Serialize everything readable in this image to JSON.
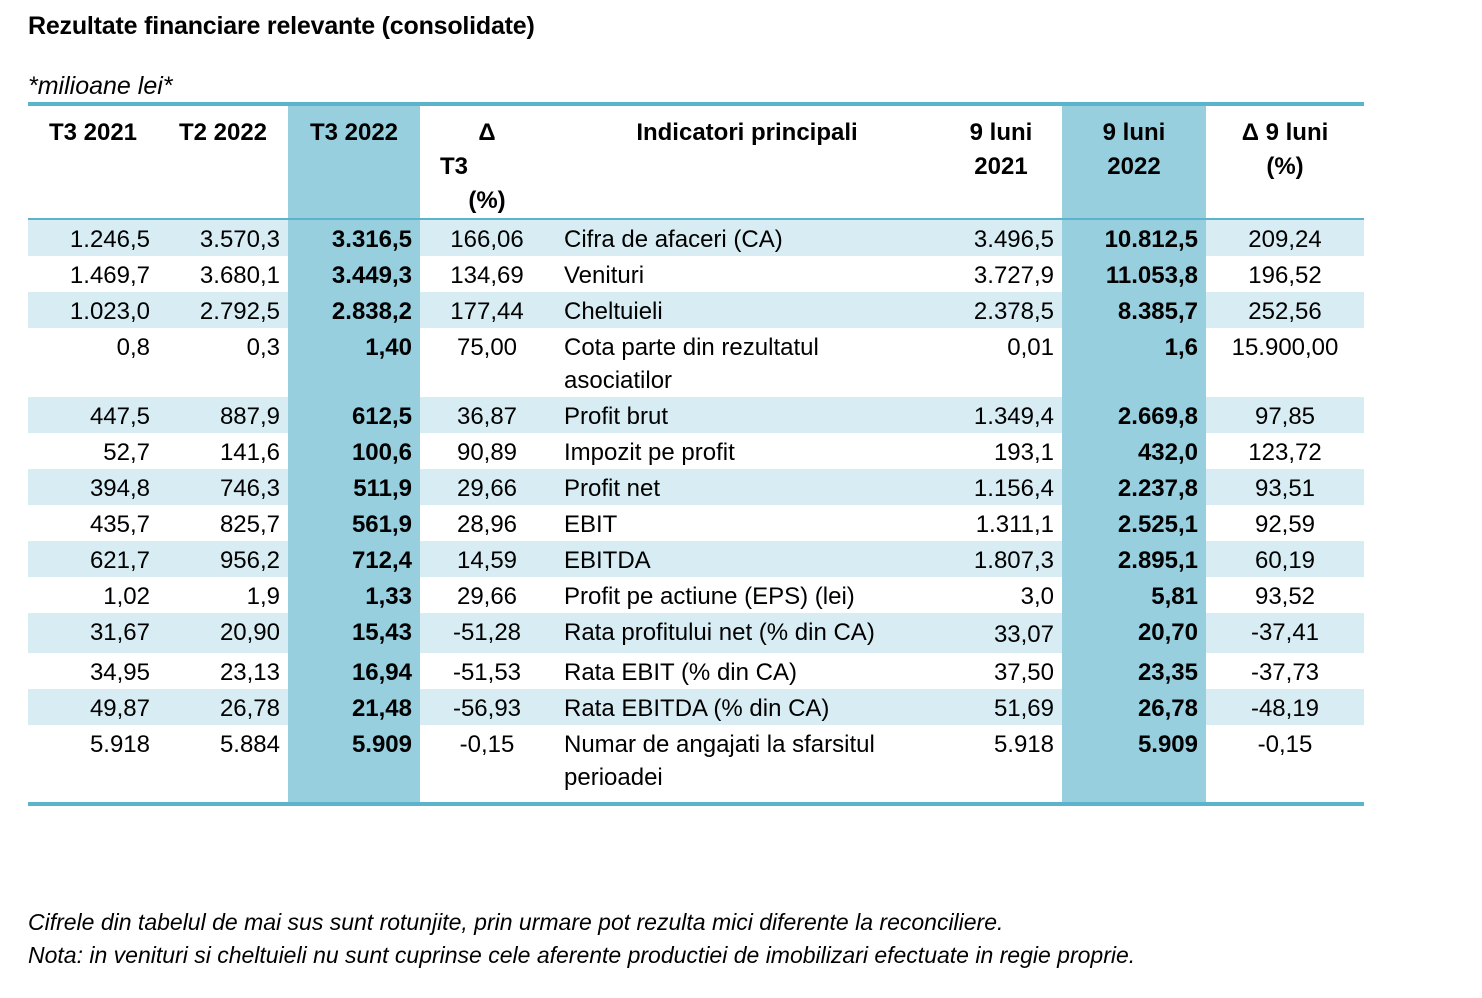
{
  "title": "Rezultate financiare relevante (consolidate)",
  "unit": "*milioane lei*",
  "headers": [
    "T3 2021",
    "T2 2022",
    "T3 2022",
    "Δ T3 (%)",
    "Indicatori principali",
    "9 luni 2021",
    "9 luni 2022",
    "Δ 9 luni (%)"
  ],
  "header_lines": {
    "h0": [
      "T3 2021"
    ],
    "h1": [
      "T2 2022"
    ],
    "h2": [
      "T3 2022"
    ],
    "h3": [
      "Δ",
      "T3",
      "(%)"
    ],
    "h4": [
      "Indicatori principali"
    ],
    "h5": [
      "9 luni",
      "2021"
    ],
    "h6": [
      "9 luni",
      "2022"
    ],
    "h7": [
      "Δ 9 luni",
      "(%)"
    ]
  },
  "rows": [
    {
      "t3_2021": "1.246,5",
      "t2_2022": "3.570,3",
      "t3_2022": "3.316,5",
      "delta_t3": "166,06",
      "indicator": "Cifra de afaceri (CA)",
      "luni9_2021": "3.496,5",
      "luni9_2022": "10.812,5",
      "delta_9luni": "209,24"
    },
    {
      "t3_2021": "1.469,7",
      "t2_2022": "3.680,1",
      "t3_2022": "3.449,3",
      "delta_t3": "134,69",
      "indicator": "Venituri",
      "luni9_2021": "3.727,9",
      "luni9_2022": "11.053,8",
      "delta_9luni": "196,52"
    },
    {
      "t3_2021": "1.023,0",
      "t2_2022": "2.792,5",
      "t3_2022": "2.838,2",
      "delta_t3": "177,44",
      "indicator": "Cheltuieli",
      "luni9_2021": "2.378,5",
      "luni9_2022": "8.385,7",
      "delta_9luni": "252,56"
    },
    {
      "t3_2021": "0,8",
      "t2_2022": "0,3",
      "t3_2022": "1,40",
      "delta_t3": "75,00",
      "indicator": "Cota parte din rezultatul asociatilor",
      "luni9_2021": "0,01",
      "luni9_2022": "1,6",
      "delta_9luni": "15.900,00"
    },
    {
      "t3_2021": "447,5",
      "t2_2022": "887,9",
      "t3_2022": "612,5",
      "delta_t3": "36,87",
      "indicator": "Profit brut",
      "luni9_2021": "1.349,4",
      "luni9_2022": "2.669,8",
      "delta_9luni": "97,85"
    },
    {
      "t3_2021": "52,7",
      "t2_2022": "141,6",
      "t3_2022": "100,6",
      "delta_t3": "90,89",
      "indicator": "Impozit pe profit",
      "luni9_2021": "193,1",
      "luni9_2022": "432,0",
      "delta_9luni": "123,72"
    },
    {
      "t3_2021": "394,8",
      "t2_2022": "746,3",
      "t3_2022": "511,9",
      "delta_t3": "29,66",
      "indicator": "Profit net",
      "luni9_2021": "1.156,4",
      "luni9_2022": "2.237,8",
      "delta_9luni": "93,51"
    },
    {
      "t3_2021": "435,7",
      "t2_2022": "825,7",
      "t3_2022": "561,9",
      "delta_t3": "28,96",
      "indicator": "EBIT",
      "luni9_2021": "1.311,1",
      "luni9_2022": "2.525,1",
      "delta_9luni": "92,59"
    },
    {
      "t3_2021": "621,7",
      "t2_2022": "956,2",
      "t3_2022": "712,4",
      "delta_t3": "14,59",
      "indicator": "EBITDA",
      "luni9_2021": "1.807,3",
      "luni9_2022": "2.895,1",
      "delta_9luni": "60,19"
    },
    {
      "t3_2021": "1,02",
      "t2_2022": "1,9",
      "t3_2022": "1,33",
      "delta_t3": "29,66",
      "indicator": "Profit pe actiune (EPS) (lei)",
      "luni9_2021": "3,0",
      "luni9_2022": "5,81",
      "delta_9luni": "93,52"
    },
    {
      "t3_2021": "31,67",
      "t2_2022": "20,90",
      "t3_2022": "15,43",
      "delta_t3": "-51,28",
      "indicator": "Rata profitului net (% din CA)",
      "luni9_2021": "33,07",
      "luni9_2022": "20,70",
      "delta_9luni": "-37,41"
    },
    {
      "t3_2021": "34,95",
      "t2_2022": "23,13",
      "t3_2022": "16,94",
      "delta_t3": "-51,53",
      "indicator": "Rata EBIT (% din CA)",
      "luni9_2021": "37,50",
      "luni9_2022": "23,35",
      "delta_9luni": "-37,73"
    },
    {
      "t3_2021": "49,87",
      "t2_2022": "26,78",
      "t3_2022": "21,48",
      "delta_t3": "-56,93",
      "indicator": "Rata EBITDA (% din CA)",
      "luni9_2021": "51,69",
      "luni9_2022": "26,78",
      "delta_9luni": "-48,19"
    },
    {
      "t3_2021": "5.918",
      "t2_2022": "5.884",
      "t3_2022": "5.909",
      "delta_t3": "-0,15",
      "indicator": "Numar de angajati la sfarsitul perioadei",
      "luni9_2021": "5.918",
      "luni9_2022": "5.909",
      "delta_9luni": "-0,15"
    }
  ],
  "notes": [
    "Cifrele din tabelul de mai sus sunt rotunjite, prin urmare pot rezulta mici diferente la reconciliere.",
    "Nota: in venituri si cheltuieli nu sunt cuprinse cele aferente productiei de imobilizari efectuate in regie proprie."
  ],
  "colors": {
    "rule": "#5ab4cc",
    "row_shade": "#d7edf3",
    "highlight_column": "#97cfdf"
  }
}
